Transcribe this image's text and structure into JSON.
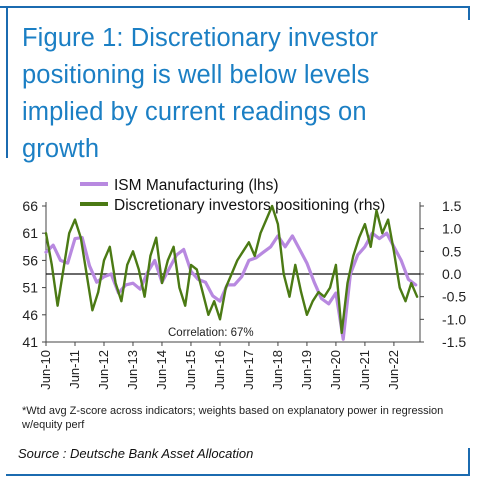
{
  "figure": {
    "title": "Figure 1: Discretionary investor positioning is well below levels implied by current readings on growth"
  },
  "footnote": "*Wtd avg Z-score across indicators; weights based on explanatory power in regression w/equity perf",
  "source": "Source : Deutsche Bank Asset Allocation",
  "colors": {
    "ism": "#b889e0",
    "positioning": "#4b7a14",
    "frame": "#1b6bb0",
    "title": "#1b7fc4"
  },
  "chart_data": {
    "type": "line",
    "annotation": "Correlation: 67%",
    "x_tick_labels": [
      "Jun-10",
      "Jun-11",
      "Jun-12",
      "Jun-13",
      "Jun-14",
      "Jun-15",
      "Jun-16",
      "Jun-17",
      "Jun-18",
      "Jun-19",
      "Jun-20",
      "Jun-21",
      "Jun-22"
    ],
    "y_left": {
      "ticks": [
        "41",
        "46",
        "51",
        "56",
        "61",
        "66"
      ],
      "ylim": [
        41,
        66
      ]
    },
    "y_right": {
      "ticks": [
        "-1.5",
        "-1.0",
        "-0.5",
        "0.0",
        "0.5",
        "1.0",
        "1.5"
      ],
      "ylim": [
        -1.5,
        1.5
      ]
    },
    "legend_position": "top",
    "zero_line_right_axis": 0.0,
    "grid": false,
    "series": [
      {
        "name": "ISM Manufacturing (lhs)",
        "axis": "left",
        "x": [
          2010.0,
          2010.25,
          2010.5,
          2010.75,
          2011.0,
          2011.25,
          2011.5,
          2011.75,
          2012.0,
          2012.25,
          2012.5,
          2012.75,
          2013.0,
          2013.25,
          2013.5,
          2013.75,
          2014.0,
          2014.25,
          2014.5,
          2014.75,
          2015.0,
          2015.25,
          2015.5,
          2015.75,
          2016.0,
          2016.25,
          2016.5,
          2016.75,
          2017.0,
          2017.25,
          2017.5,
          2017.75,
          2018.0,
          2018.25,
          2018.5,
          2018.75,
          2019.0,
          2019.25,
          2019.5,
          2019.75,
          2020.0,
          2020.25,
          2020.5,
          2020.75,
          2021.0,
          2021.25,
          2021.5,
          2021.75,
          2022.0,
          2022.25,
          2022.5,
          2022.75
        ],
        "values": [
          57.5,
          58.8,
          56.0,
          55.5,
          60.0,
          60.2,
          55.0,
          52.0,
          53.0,
          53.5,
          50.0,
          51.5,
          51.8,
          50.7,
          53.8,
          56.0,
          52.0,
          54.5,
          57.0,
          58.0,
          54.0,
          52.5,
          52.0,
          49.5,
          48.5,
          51.5,
          51.5,
          53.0,
          56.0,
          56.5,
          57.5,
          58.5,
          60.5,
          58.5,
          60.5,
          58.0,
          55.5,
          52.0,
          49.0,
          48.0,
          50.0,
          41.5,
          53.5,
          57.0,
          58.5,
          61.0,
          60.0,
          61.0,
          58.5,
          56.0,
          52.5,
          51.5
        ]
      },
      {
        "name": "Discretionary investors positioning (rhs)",
        "axis": "right",
        "x": [
          2010.0,
          2010.2,
          2010.4,
          2010.6,
          2010.8,
          2011.0,
          2011.2,
          2011.4,
          2011.6,
          2011.8,
          2012.0,
          2012.2,
          2012.4,
          2012.6,
          2012.8,
          2013.0,
          2013.2,
          2013.4,
          2013.6,
          2013.8,
          2014.0,
          2014.2,
          2014.4,
          2014.6,
          2014.8,
          2015.0,
          2015.2,
          2015.4,
          2015.6,
          2015.8,
          2016.0,
          2016.2,
          2016.4,
          2016.6,
          2016.8,
          2017.0,
          2017.2,
          2017.4,
          2017.6,
          2017.8,
          2018.0,
          2018.2,
          2018.4,
          2018.6,
          2018.8,
          2019.0,
          2019.2,
          2019.4,
          2019.6,
          2019.8,
          2020.0,
          2020.2,
          2020.4,
          2020.6,
          2020.8,
          2021.0,
          2021.2,
          2021.4,
          2021.6,
          2021.8,
          2022.0,
          2022.2,
          2022.4,
          2022.6,
          2022.8
        ],
        "values": [
          0.9,
          0.2,
          -0.7,
          0.1,
          0.9,
          1.2,
          0.8,
          0.0,
          -0.8,
          -0.4,
          0.3,
          0.6,
          -0.2,
          -0.6,
          0.2,
          0.5,
          0.1,
          -0.5,
          0.4,
          0.8,
          -0.2,
          0.3,
          0.6,
          -0.3,
          -0.7,
          0.2,
          0.1,
          -0.4,
          -0.9,
          -0.6,
          -1.0,
          -0.3,
          0.0,
          0.3,
          0.5,
          0.7,
          0.4,
          0.9,
          1.2,
          1.5,
          1.1,
          0.0,
          -0.5,
          0.2,
          -0.4,
          -0.9,
          -0.6,
          -0.4,
          -0.5,
          -0.3,
          0.2,
          -1.3,
          -0.2,
          0.4,
          0.8,
          1.1,
          0.6,
          1.4,
          0.9,
          1.2,
          0.5,
          -0.3,
          -0.6,
          -0.2,
          -0.5
        ]
      }
    ]
  }
}
